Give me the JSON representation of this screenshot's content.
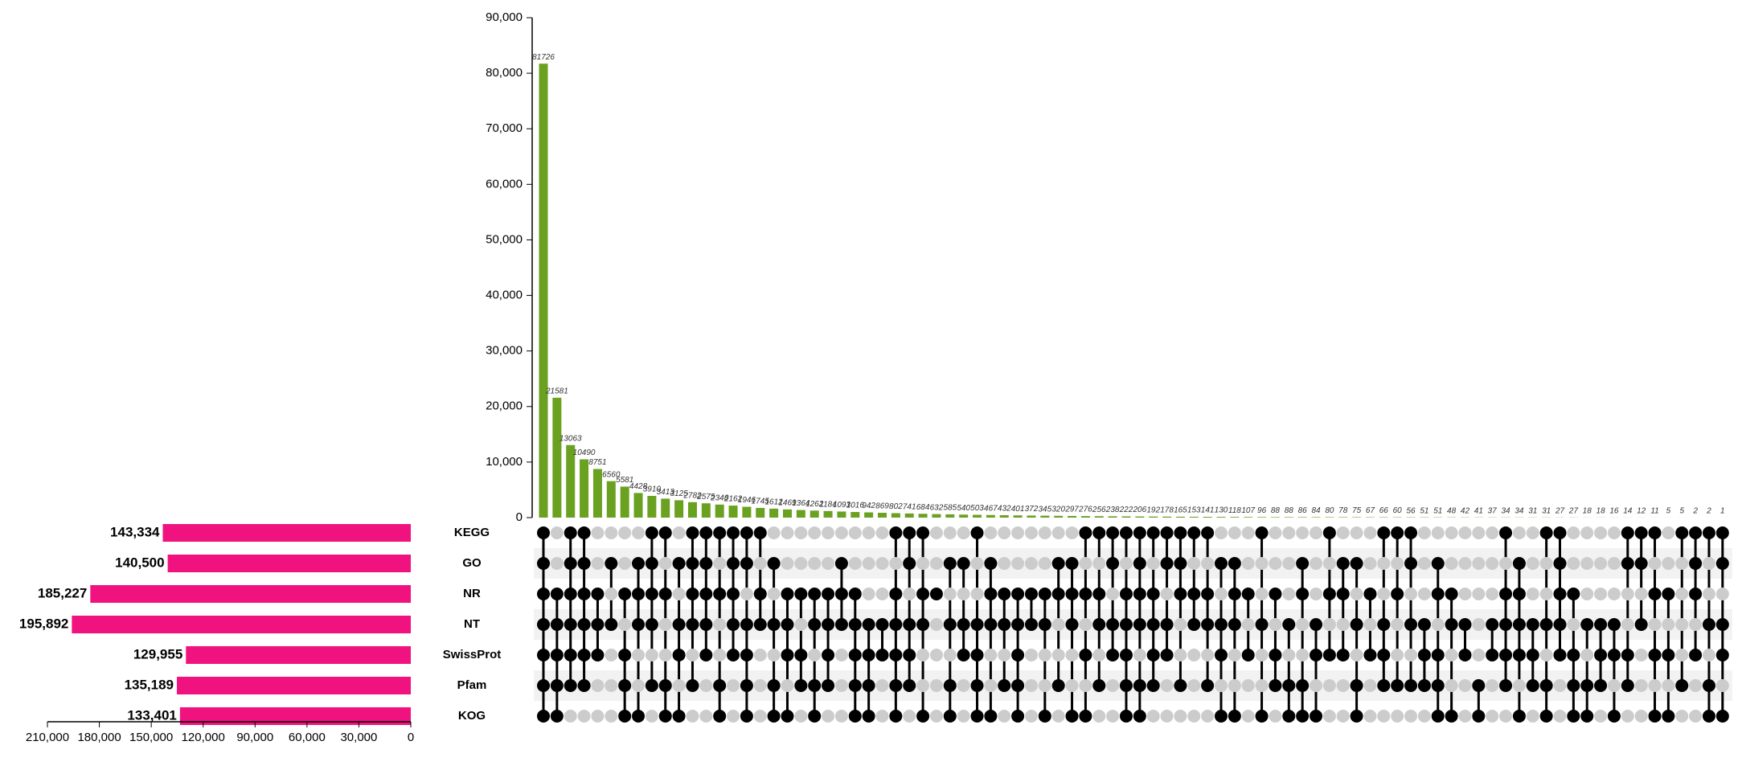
{
  "chart_data": {
    "type": "upset",
    "sets": [
      "KEGG",
      "GO",
      "NR",
      "NT",
      "SwissProt",
      "Pfam",
      "KOG"
    ],
    "set_sizes": [
      143334,
      140500,
      185227,
      195892,
      129955,
      135189,
      133401
    ],
    "set_size_labels": [
      "143,334",
      "140,500",
      "185,227",
      "195,892",
      "129,955",
      "135,189",
      "133,401"
    ],
    "set_color": "#f0127f",
    "xlim": [
      210000,
      0
    ],
    "xticks": [
      {
        "value": 210000,
        "label": "210,000"
      },
      {
        "value": 180000,
        "label": "180,000"
      },
      {
        "value": 150000,
        "label": "150,000"
      },
      {
        "value": 120000,
        "label": "120,000"
      },
      {
        "value": 90000,
        "label": "90,000"
      },
      {
        "value": 60000,
        "label": "60,000"
      },
      {
        "value": 30000,
        "label": "30,000"
      },
      0
    ],
    "intersections": [
      81726,
      21581,
      13063,
      10490,
      8751,
      6560,
      5581,
      4428,
      3910,
      3413,
      3125,
      2782,
      2575,
      2346,
      2162,
      1946,
      1745,
      1612,
      1469,
      1364,
      1262,
      1184,
      1093,
      1016,
      942,
      869,
      802,
      741,
      684,
      632,
      585,
      540,
      503,
      467,
      432,
      401,
      372,
      345,
      320,
      297,
      276,
      256,
      238,
      222,
      206,
      192,
      178,
      165,
      153,
      141,
      130,
      118,
      107,
      96,
      88,
      88,
      86,
      84,
      80,
      78,
      75,
      67,
      66,
      60,
      56,
      51,
      51,
      48,
      42,
      41,
      37,
      34,
      34,
      31,
      31,
      27,
      27,
      18,
      18,
      16,
      14,
      12,
      11,
      5,
      5,
      2,
      2,
      1
    ],
    "bar_color": "#6aa121",
    "ylim": [
      0,
      90000
    ],
    "yticks": [
      0,
      {
        "value": 10000,
        "label": "10,000"
      },
      {
        "value": 20000,
        "label": "20,000"
      },
      {
        "value": 30000,
        "label": "30,000"
      },
      {
        "value": 40000,
        "label": "40,000"
      },
      {
        "value": 50000,
        "label": "50,000"
      },
      {
        "value": 60000,
        "label": "60,000"
      },
      {
        "value": 70000,
        "label": "70,000"
      },
      {
        "value": 80000,
        "label": "80,000"
      },
      {
        "value": 90000,
        "label": "90,000"
      }
    ],
    "matrix": [
      [
        1,
        0,
        1,
        1,
        0,
        0,
        0,
        0,
        1,
        1,
        0,
        1,
        1,
        1,
        1,
        1,
        1,
        0,
        0,
        0,
        0,
        0,
        0,
        0,
        0,
        0,
        1,
        1,
        1,
        0,
        0,
        0,
        1,
        0,
        0,
        0,
        0,
        0,
        0,
        0,
        1,
        1,
        1,
        1,
        1,
        1,
        1,
        1,
        1,
        1,
        0,
        0,
        0,
        1,
        0,
        0,
        0,
        0,
        1,
        0,
        0,
        0,
        1,
        1,
        1,
        0,
        0,
        0,
        0,
        0,
        0,
        1,
        0,
        0,
        1,
        1,
        0,
        0,
        0,
        0,
        1,
        1,
        1,
        0,
        1,
        1,
        1,
        1
      ],
      [
        1,
        0,
        1,
        1,
        0,
        1,
        0,
        1,
        1,
        0,
        1,
        1,
        1,
        0,
        1,
        1,
        0,
        1,
        0,
        0,
        0,
        0,
        1,
        0,
        0,
        0,
        0,
        1,
        0,
        0,
        1,
        1,
        0,
        1,
        0,
        0,
        0,
        0,
        1,
        1,
        0,
        0,
        1,
        0,
        1,
        0,
        1,
        1,
        0,
        0,
        1,
        1,
        0,
        0,
        0,
        0,
        1,
        0,
        0,
        1,
        1,
        0,
        0,
        0,
        1,
        0,
        1,
        0,
        0,
        0,
        0,
        0,
        1,
        0,
        0,
        1,
        0,
        0,
        0,
        0,
        1,
        1,
        0,
        0,
        0,
        1,
        0,
        1
      ],
      [
        1,
        1,
        1,
        1,
        1,
        0,
        1,
        1,
        1,
        1,
        0,
        1,
        1,
        1,
        1,
        0,
        1,
        0,
        1,
        1,
        1,
        1,
        1,
        1,
        0,
        0,
        1,
        0,
        1,
        1,
        0,
        0,
        0,
        1,
        1,
        1,
        1,
        1,
        1,
        1,
        1,
        1,
        0,
        1,
        1,
        1,
        0,
        1,
        1,
        1,
        0,
        1,
        1,
        0,
        1,
        0,
        1,
        0,
        1,
        1,
        0,
        1,
        0,
        1,
        0,
        0,
        1,
        1,
        0,
        0,
        0,
        1,
        1,
        0,
        0,
        1,
        1,
        0,
        0,
        0,
        0,
        0,
        1,
        1,
        0,
        1,
        0,
        0
      ],
      [
        1,
        1,
        1,
        1,
        1,
        1,
        0,
        1,
        1,
        0,
        1,
        1,
        1,
        0,
        1,
        1,
        1,
        1,
        1,
        0,
        1,
        1,
        1,
        1,
        1,
        1,
        1,
        1,
        1,
        0,
        1,
        1,
        1,
        1,
        1,
        1,
        1,
        1,
        0,
        1,
        0,
        1,
        1,
        1,
        1,
        1,
        1,
        0,
        1,
        1,
        1,
        1,
        0,
        1,
        0,
        1,
        0,
        1,
        0,
        0,
        1,
        0,
        1,
        0,
        1,
        1,
        0,
        1,
        1,
        0,
        1,
        1,
        1,
        1,
        1,
        1,
        0,
        1,
        1,
        1,
        0,
        1,
        0,
        0,
        0,
        0,
        1,
        1
      ],
      [
        1,
        1,
        1,
        1,
        1,
        0,
        1,
        0,
        0,
        0,
        1,
        0,
        1,
        0,
        1,
        1,
        0,
        0,
        1,
        1,
        0,
        1,
        0,
        1,
        1,
        1,
        1,
        1,
        0,
        0,
        0,
        1,
        1,
        0,
        0,
        1,
        0,
        0,
        0,
        0,
        1,
        0,
        1,
        1,
        0,
        1,
        1,
        0,
        0,
        0,
        1,
        0,
        1,
        0,
        1,
        0,
        0,
        1,
        1,
        1,
        0,
        1,
        1,
        0,
        0,
        1,
        1,
        0,
        1,
        0,
        1,
        1,
        1,
        1,
        0,
        1,
        1,
        0,
        1,
        1,
        1,
        0,
        1,
        1,
        0,
        1,
        0,
        1
      ],
      [
        1,
        1,
        1,
        1,
        0,
        0,
        1,
        0,
        1,
        1,
        0,
        1,
        0,
        1,
        0,
        1,
        0,
        1,
        0,
        1,
        1,
        1,
        0,
        1,
        1,
        0,
        1,
        1,
        0,
        0,
        1,
        0,
        1,
        0,
        1,
        1,
        0,
        0,
        1,
        0,
        0,
        1,
        0,
        1,
        1,
        1,
        0,
        1,
        0,
        1,
        0,
        0,
        0,
        0,
        1,
        1,
        1,
        0,
        0,
        0,
        1,
        0,
        1,
        1,
        1,
        1,
        1,
        0,
        0,
        1,
        0,
        1,
        0,
        1,
        1,
        0,
        1,
        1,
        1,
        0,
        1,
        0,
        0,
        0,
        1,
        0,
        1,
        0
      ],
      [
        1,
        1,
        0,
        0,
        0,
        0,
        1,
        1,
        0,
        1,
        1,
        0,
        0,
        1,
        0,
        1,
        0,
        1,
        1,
        0,
        1,
        0,
        0,
        1,
        1,
        0,
        1,
        0,
        1,
        0,
        1,
        0,
        1,
        1,
        0,
        1,
        0,
        1,
        0,
        1,
        1,
        0,
        0,
        1,
        1,
        0,
        0,
        0,
        0,
        0,
        1,
        1,
        0,
        1,
        0,
        1,
        1,
        1,
        0,
        0,
        1,
        0,
        0,
        0,
        0,
        0,
        1,
        1,
        0,
        1,
        0,
        0,
        1,
        0,
        1,
        0,
        1,
        1,
        0,
        1,
        0,
        0,
        1,
        1,
        0,
        0,
        1,
        1
      ]
    ],
    "dot_on_color": "#000000",
    "dot_off_color": "#cccccc"
  }
}
